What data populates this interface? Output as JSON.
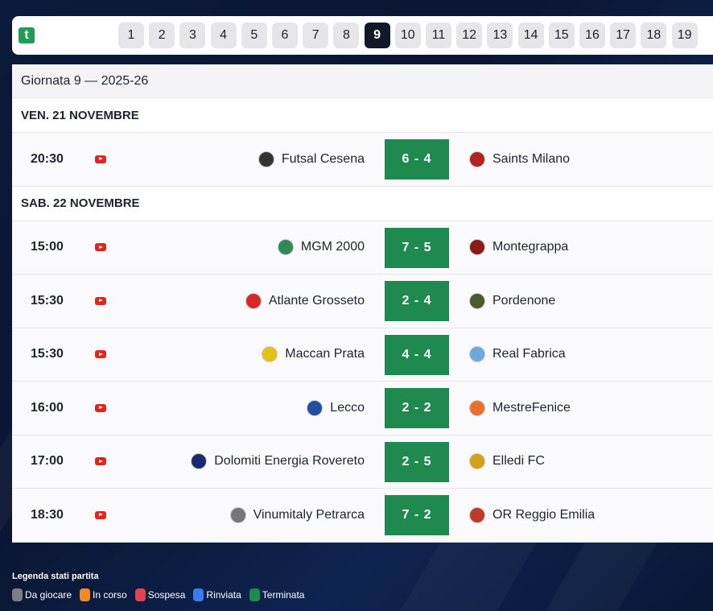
{
  "nav": {
    "logo_text": "t",
    "rounds": [
      "1",
      "2",
      "3",
      "4",
      "5",
      "6",
      "7",
      "8",
      "9",
      "10",
      "11",
      "12",
      "13",
      "14",
      "15",
      "16",
      "17",
      "18",
      "19"
    ],
    "active_round": "9"
  },
  "round_title": "Giornata 9 — 2025-26",
  "days": [
    {
      "label": "VEN. 21 NOVEMBRE",
      "matches": [
        {
          "time": "20:30",
          "home": "Futsal Cesena",
          "score": "6 - 4",
          "away": "Saints Milano",
          "home_color": "#333333",
          "away_color": "#b22222"
        }
      ]
    },
    {
      "label": "SAB. 22 NOVEMBRE",
      "matches": [
        {
          "time": "15:00",
          "home": "MGM 2000",
          "score": "7 - 5",
          "away": "Montegrappa",
          "home_color": "#2e8b57",
          "away_color": "#8b1a1a"
        },
        {
          "time": "15:30",
          "home": "Atlante Grosseto",
          "score": "2 - 4",
          "away": "Pordenone",
          "home_color": "#d62828",
          "away_color": "#4a5a2a"
        },
        {
          "time": "15:30",
          "home": "Maccan Prata",
          "score": "4 - 4",
          "away": "Real Fabrica",
          "home_color": "#e0c21a",
          "away_color": "#6fa8dc"
        },
        {
          "time": "16:00",
          "home": "Lecco",
          "score": "2 - 2",
          "away": "MestreFenice",
          "home_color": "#1e4fa0",
          "away_color": "#e8702a"
        },
        {
          "time": "17:00",
          "home": "Dolomiti Energia Rovereto",
          "score": "2 - 5",
          "away": "Elledi FC",
          "home_color": "#1a2a6c",
          "away_color": "#d4a017"
        },
        {
          "time": "18:30",
          "home": "Vinumitaly Petrarca",
          "score": "7 - 2",
          "away": "OR Reggio Emilia",
          "home_color": "#777777",
          "away_color": "#c0392b"
        }
      ]
    }
  ],
  "legend": {
    "title": "Legenda stati partita",
    "items": [
      {
        "label": "Da giocare",
        "color": "#7b8088"
      },
      {
        "label": "In corso",
        "color": "#f08a24"
      },
      {
        "label": "Sospesa",
        "color": "#e0424f"
      },
      {
        "label": "Rinviata",
        "color": "#3b7bf0"
      },
      {
        "label": "Terminata",
        "color": "#1e8a4f"
      }
    ]
  },
  "colors": {
    "score_bg": "#1e8a4f",
    "active_round_bg": "#111827",
    "youtube": "#e5231b"
  }
}
